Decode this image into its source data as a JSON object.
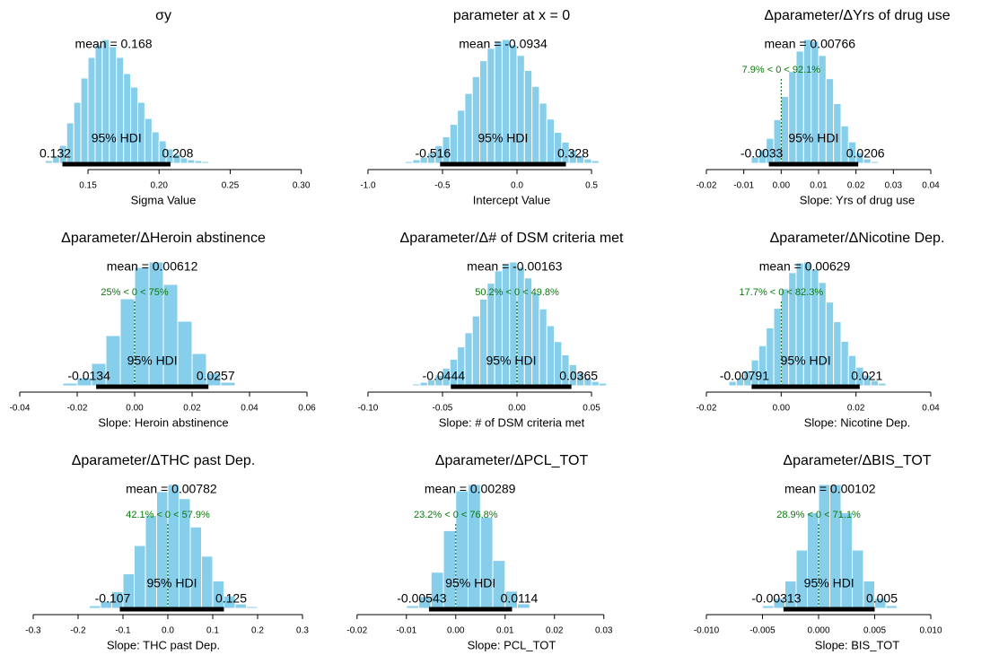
{
  "chart_data": [
    {
      "type": "histogram",
      "title": "σy",
      "xlabel": "Sigma Value",
      "color": "#87ceeb",
      "bins": [
        0.12,
        0.125,
        0.13,
        0.135,
        0.14,
        0.145,
        0.15,
        0.155,
        0.16,
        0.165,
        0.17,
        0.175,
        0.18,
        0.185,
        0.19,
        0.195,
        0.2,
        0.205,
        0.21,
        0.215,
        0.22,
        0.225,
        0.23,
        0.235,
        0.24,
        0.245
      ],
      "values": [
        3,
        8,
        20,
        45,
        68,
        95,
        118,
        132,
        138,
        130,
        118,
        100,
        85,
        68,
        50,
        35,
        25,
        16,
        10,
        6,
        4,
        3,
        2,
        1,
        1
      ],
      "xlim": [
        0.102,
        0.304
      ],
      "xticks": [
        0.15,
        {
          "value": 0.2,
          "label": "0.20"
        },
        0.25,
        {
          "value": 0.3,
          "label": "0.30"
        }
      ],
      "mean": {
        "value": 0.168,
        "label": "mean = 0.168"
      },
      "hdi": [
        0.132,
        0.208
      ],
      "hdi_label": "95% HDI"
    },
    {
      "type": "histogram",
      "title": "parameter at x = 0",
      "xlabel": "Intercept Value",
      "color": "#87ceeb",
      "bins": [
        -0.75,
        -0.7,
        -0.65,
        -0.6,
        -0.55,
        -0.5,
        -0.45,
        -0.4,
        -0.35,
        -0.3,
        -0.25,
        -0.2,
        -0.15,
        -0.1,
        -0.05,
        0,
        0.05,
        0.1,
        0.15,
        0.2,
        0.25,
        0.3,
        0.35,
        0.4,
        0.45,
        0.5,
        0.55,
        0.6
      ],
      "values": [
        2,
        4,
        7,
        12,
        20,
        30,
        44,
        60,
        79,
        98,
        116,
        130,
        138,
        140,
        134,
        122,
        105,
        87,
        68,
        50,
        35,
        24,
        15,
        9,
        5,
        3,
        1
      ],
      "xlim": [
        -1.06,
        0.566
      ],
      "xticks": [
        {
          "value": -1,
          "label": "-1.0"
        },
        -0.5,
        {
          "value": 0,
          "label": "0.0"
        },
        0.5
      ],
      "mean": {
        "value": -0.0934,
        "label": "mean = -0.0934"
      },
      "hdi": [
        -0.516,
        0.328
      ],
      "hdi_label": "95% HDI"
    },
    {
      "type": "histogram",
      "title": "Δparameter/ΔYrs of drug use",
      "xlabel": "Slope: Yrs of drug use",
      "color": "#87ceeb",
      "bins": [
        -0.008,
        -0.006,
        -0.004,
        -0.002,
        0,
        0.002,
        0.004,
        0.006,
        0.008,
        0.01,
        0.012,
        0.014,
        0.016,
        0.018,
        0.02,
        0.022,
        0.024,
        0.026
      ],
      "values": [
        7,
        15,
        28,
        49,
        75,
        103,
        126,
        139,
        137,
        121,
        95,
        67,
        42,
        24,
        12,
        5,
        2
      ],
      "xlim": [
        -0.02,
        0.04
      ],
      "xticks": [
        -0.02,
        -0.01,
        {
          "value": 0,
          "label": "0.00"
        },
        0.01,
        0.02,
        0.03,
        0.04
      ],
      "mean": {
        "value": 0.00766,
        "label": "mean = 0.00766"
      },
      "hdi": [
        -0.0033,
        0.0206
      ],
      "hdi_label": "95% HDI",
      "comparison": {
        "value": 0,
        "label": "7.9% < 0 < 92.1%"
      }
    },
    {
      "type": "histogram",
      "title": "Δparameter/ΔHeroin abstinence",
      "xlabel": "Slope: Heroin abstinence",
      "color": "#87ceeb",
      "bins": [
        -0.025,
        -0.02,
        -0.015,
        -0.01,
        -0.005,
        0,
        0.005,
        0.01,
        0.015,
        0.02,
        0.025,
        0.03,
        0.035,
        0.04
      ],
      "values": [
        3,
        9,
        25,
        56,
        97,
        132,
        138,
        113,
        72,
        36,
        14,
        4,
        1
      ],
      "xlim": [
        -0.04,
        0.06
      ],
      "xticks": [
        -0.04,
        -0.02,
        {
          "value": 0,
          "label": "0.00"
        },
        0.02,
        0.04,
        0.06
      ],
      "mean": {
        "value": 0.00612,
        "label": "mean = 0.00612"
      },
      "hdi": [
        -0.0134,
        0.0257
      ],
      "hdi_label": "95% HDI",
      "comparison": {
        "value": 0,
        "label": "25% < 0 < 75%"
      }
    },
    {
      "type": "histogram",
      "title": "Δparameter/Δ# of DSM criteria met",
      "xlabel": "Slope: # of DSM criteria met",
      "color": "#87ceeb",
      "bins": [
        -0.07,
        -0.065,
        -0.06,
        -0.055,
        -0.05,
        -0.045,
        -0.04,
        -0.035,
        -0.03,
        -0.025,
        -0.02,
        -0.015,
        -0.01,
        -0.005,
        0,
        0.005,
        0.01,
        0.015,
        0.02,
        0.025,
        0.03,
        0.035,
        0.04,
        0.045,
        0.05,
        0.055,
        0.06,
        0.065
      ],
      "values": [
        2,
        4,
        7,
        12,
        20,
        30,
        44,
        60,
        79,
        98,
        116,
        130,
        138,
        140,
        134,
        122,
        105,
        87,
        68,
        50,
        35,
        24,
        15,
        9,
        5,
        3,
        1
      ],
      "xlim": [
        -0.106,
        0.0566
      ],
      "xticks": [
        {
          "value": -0.1,
          "label": "-0.10"
        },
        -0.05,
        {
          "value": 0,
          "label": "0.00"
        },
        0.05
      ],
      "mean": {
        "value": -0.00163,
        "label": "mean = -0.00163"
      },
      "hdi": [
        -0.0444,
        0.0365
      ],
      "hdi_label": "95% HDI",
      "comparison": {
        "value": 0,
        "label": "50.2% < 0 < 49.8%"
      }
    },
    {
      "type": "histogram",
      "title": "Δparameter/ΔNicotine Dep.",
      "xlabel": "Slope: Nicotine Dep.",
      "color": "#87ceeb",
      "bins": [
        -0.014,
        -0.012,
        -0.01,
        -0.008,
        -0.006,
        -0.004,
        -0.002,
        0,
        0.002,
        0.004,
        0.006,
        0.008,
        0.01,
        0.012,
        0.014,
        0.016,
        0.018,
        0.02,
        0.022,
        0.024,
        0.026,
        0.028
      ],
      "values": [
        5,
        9,
        17,
        29,
        45,
        65,
        87,
        109,
        127,
        138,
        139,
        131,
        116,
        94,
        72,
        50,
        34,
        21,
        12,
        6,
        3
      ],
      "xlim": [
        -0.02,
        0.04
      ],
      "xticks": [
        -0.02,
        {
          "value": 0,
          "label": "0.00"
        },
        0.02,
        0.04
      ],
      "mean": {
        "value": 0.00629,
        "label": "mean = 0.00629"
      },
      "hdi": [
        -0.00791,
        0.021
      ],
      "hdi_label": "95% HDI",
      "comparison": {
        "value": 0,
        "label": "17.7% < 0 < 82.3%"
      }
    },
    {
      "type": "histogram",
      "title": "Δparameter/ΔTHC past Dep.",
      "xlabel": "Slope: THC past Dep.",
      "color": "#87ceeb",
      "bins": [
        -0.2,
        -0.175,
        -0.15,
        -0.125,
        -0.1,
        -0.075,
        -0.05,
        -0.025,
        0,
        0.025,
        0.05,
        0.075,
        0.1,
        0.125,
        0.15,
        0.175,
        0.2,
        0.225
      ],
      "values": [
        1,
        3,
        8,
        19,
        39,
        71,
        105,
        132,
        140,
        124,
        92,
        59,
        31,
        14,
        5,
        2,
        1
      ],
      "xlim": [
        -0.33,
        0.31
      ],
      "xticks": [
        -0.3,
        -0.2,
        -0.1,
        {
          "value": 0,
          "label": "0.0"
        },
        0.1,
        0.2,
        0.3
      ],
      "mean": {
        "value": 0.00782,
        "label": "mean = 0.00782"
      },
      "hdi": [
        -0.107,
        0.125
      ],
      "hdi_label": "95% HDI",
      "comparison": {
        "value": 0,
        "label": "42.1% < 0 < 57.9%"
      }
    },
    {
      "type": "histogram",
      "title": "Δparameter/ΔPCL_TOT",
      "xlabel": "Slope: PCL_TOT",
      "color": "#87ceeb",
      "bins": [
        -0.01,
        -0.0075,
        -0.005,
        -0.0025,
        0,
        0.0025,
        0.005,
        0.0075,
        0.01,
        0.0125,
        0.015,
        0.0175
      ],
      "values": [
        3,
        13,
        40,
        86,
        130,
        137,
        101,
        53,
        19,
        5,
        1
      ],
      "xlim": [
        -0.0196,
        0.0295
      ],
      "xticks": [
        -0.02,
        -0.01,
        {
          "value": 0,
          "label": "0.00"
        },
        0.01,
        0.02,
        0.03
      ],
      "mean": {
        "value": 0.00289,
        "label": "mean = 0.00289"
      },
      "hdi": [
        -0.00543,
        0.0114
      ],
      "hdi_label": "95% HDI",
      "comparison": {
        "value": 0,
        "label": "23.2% < 0 < 76.8%"
      }
    },
    {
      "type": "histogram",
      "title": "Δparameter/ΔBIS_TOT",
      "xlabel": "Slope: BIS_TOT",
      "color": "#87ceeb",
      "bins": [
        -0.006,
        -0.005,
        -0.004,
        -0.003,
        -0.002,
        -0.001,
        0,
        0.001,
        0.002,
        0.003,
        0.004,
        0.005,
        0.006,
        0.007,
        0.008,
        0.009
      ],
      "values": [
        1,
        3,
        11,
        30,
        64,
        105,
        136,
        136,
        105,
        64,
        30,
        11,
        3,
        1,
        1
      ],
      "xlim": [
        -0.01,
        0.01
      ],
      "xticks": [
        {
          "value": -0.01,
          "label": "-0.010"
        },
        -0.005,
        {
          "value": 0,
          "label": "0.000"
        },
        0.005,
        {
          "value": 0.01,
          "label": "0.010"
        }
      ],
      "mean": {
        "value": 0.00102,
        "label": "mean = 0.00102"
      },
      "hdi": [
        -0.00313,
        0.005
      ],
      "hdi_label": "95% HDI",
      "comparison": {
        "value": 0,
        "label": "28.9% < 0 < 71.1%"
      }
    }
  ]
}
